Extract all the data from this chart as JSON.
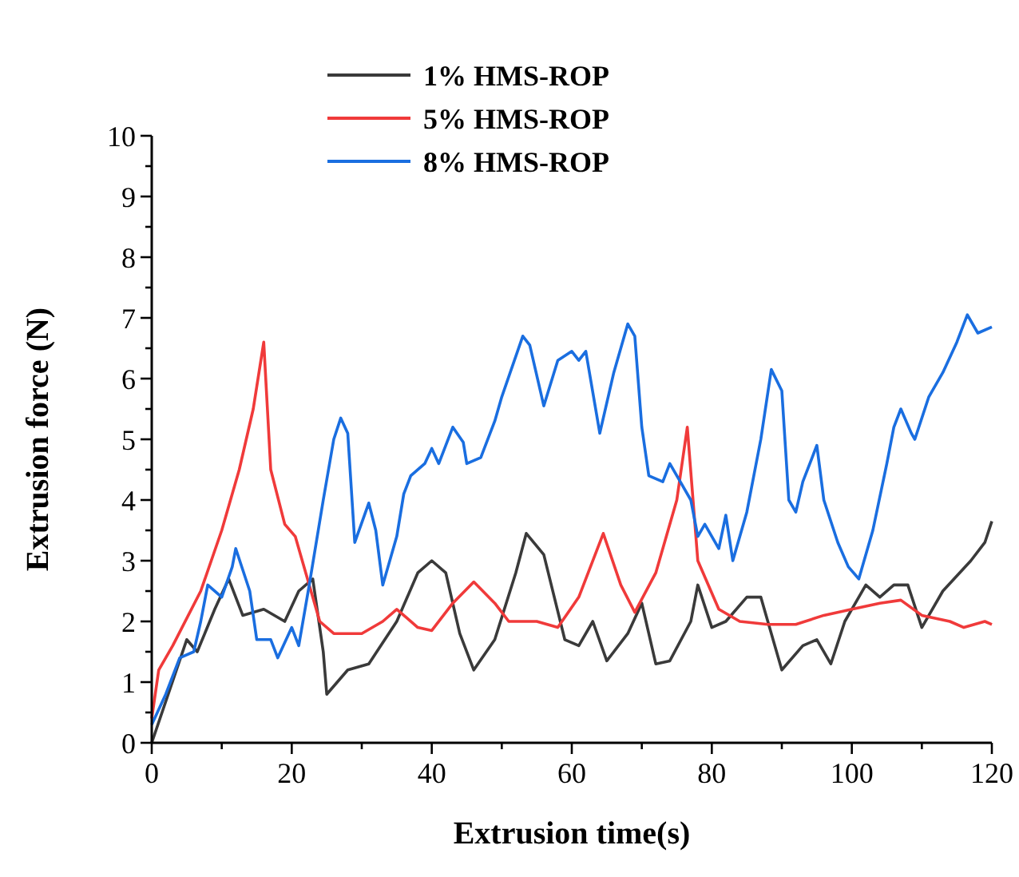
{
  "chart_data": {
    "type": "line",
    "xlabel": "Extrusion time(s)",
    "ylabel": "Extrusion force (N)",
    "xlim": [
      0,
      120
    ],
    "ylim": [
      0,
      10
    ],
    "xticks": [
      0,
      {
        "value": 10,
        "label": null
      },
      20,
      {
        "value": 30,
        "label": null
      },
      40,
      {
        "value": 50,
        "label": null
      },
      60,
      {
        "value": 70,
        "label": null
      },
      80,
      {
        "value": 90,
        "label": null
      },
      100,
      {
        "value": 110,
        "label": null
      },
      120
    ],
    "yticks": [
      0,
      {
        "value": 0.5,
        "label": null
      },
      1,
      {
        "value": 1.5,
        "label": null
      },
      2,
      {
        "value": 2.5,
        "label": null
      },
      3,
      {
        "value": 3.5,
        "label": null
      },
      4,
      {
        "value": 4.5,
        "label": null
      },
      5,
      {
        "value": 5.5,
        "label": null
      },
      6,
      {
        "value": 6.5,
        "label": null
      },
      7,
      {
        "value": 7.5,
        "label": null
      },
      8,
      {
        "value": 8.5,
        "label": null
      },
      9,
      {
        "value": 9.5,
        "label": null
      },
      10
    ],
    "legend": "top",
    "grid": false,
    "marker": "none",
    "line_style": "solid",
    "series": [
      {
        "name": "1% HMS-ROP",
        "color": "#3a3a3a",
        "x": [
          0,
          5,
          6.5,
          9,
          11,
          13,
          16,
          19,
          21,
          23,
          24.5,
          25,
          28,
          31,
          35,
          38,
          40,
          42,
          44,
          46,
          49,
          52,
          53.5,
          56,
          59,
          61,
          63,
          65,
          68,
          70,
          72,
          74,
          77,
          78,
          80,
          82,
          85,
          87,
          90,
          93,
          95,
          97,
          99,
          102,
          104,
          106,
          108,
          110,
          113,
          117,
          119,
          120
        ],
        "values": [
          0,
          1.7,
          1.5,
          2.2,
          2.7,
          2.1,
          2.2,
          2.0,
          2.5,
          2.7,
          1.5,
          0.8,
          1.2,
          1.3,
          2.0,
          2.8,
          3.0,
          2.8,
          1.8,
          1.2,
          1.7,
          2.8,
          3.45,
          3.1,
          1.7,
          1.6,
          2.0,
          1.35,
          1.8,
          2.3,
          1.3,
          1.35,
          2.0,
          2.6,
          1.9,
          2.0,
          2.4,
          2.4,
          1.2,
          1.6,
          1.7,
          1.3,
          2.0,
          2.6,
          2.4,
          2.6,
          2.6,
          1.9,
          2.5,
          3.0,
          3.3,
          3.65
        ]
      },
      {
        "name": "5% HMS-ROP",
        "color": "#f03a3a",
        "x": [
          0,
          1,
          3,
          7,
          10,
          12.5,
          14.5,
          16,
          17,
          19,
          20.5,
          22,
          24,
          26,
          30,
          33,
          35,
          38,
          40,
          43,
          46,
          49,
          51,
          55,
          58,
          61,
          64.5,
          67,
          69,
          72,
          75,
          76.5,
          78,
          81,
          84,
          88,
          92,
          96,
          100,
          104,
          107,
          110,
          114,
          116,
          119,
          120
        ],
        "values": [
          0.4,
          1.2,
          1.6,
          2.5,
          3.5,
          4.5,
          5.5,
          6.6,
          4.5,
          3.6,
          3.4,
          2.8,
          2.0,
          1.8,
          1.8,
          2.0,
          2.2,
          1.9,
          1.85,
          2.3,
          2.65,
          2.3,
          2.0,
          2.0,
          1.9,
          2.4,
          3.45,
          2.6,
          2.15,
          2.8,
          4.0,
          5.2,
          3.0,
          2.2,
          2.0,
          1.95,
          1.95,
          2.1,
          2.2,
          2.3,
          2.35,
          2.1,
          2.0,
          1.9,
          2.0,
          1.95
        ]
      },
      {
        "name": "8% HMS-ROP",
        "color": "#1a6ee0",
        "x": [
          0,
          2,
          4,
          6,
          7,
          8,
          10,
          11.5,
          12,
          14,
          15,
          17,
          18,
          20,
          21,
          22.5,
          24.5,
          26,
          27,
          28,
          29,
          31,
          32,
          33,
          35,
          36,
          37,
          39,
          40,
          41,
          43,
          44.5,
          45,
          47,
          49,
          50,
          53,
          54,
          56,
          58,
          60,
          61,
          62,
          64,
          66,
          68,
          69,
          70,
          71,
          73,
          74,
          75.5,
          77,
          78,
          79,
          81,
          82,
          83,
          85,
          87,
          88.5,
          90,
          91,
          92,
          93,
          95,
          96,
          98,
          99.5,
          101,
          103,
          105,
          106,
          107,
          108.5,
          109,
          111,
          113,
          115,
          116.5,
          118,
          120
        ],
        "values": [
          0.3,
          0.8,
          1.4,
          1.5,
          2.0,
          2.6,
          2.4,
          2.9,
          3.2,
          2.5,
          1.7,
          1.7,
          1.4,
          1.9,
          1.6,
          2.6,
          4.0,
          5.0,
          5.35,
          5.1,
          3.3,
          3.95,
          3.5,
          2.6,
          3.4,
          4.1,
          4.4,
          4.6,
          4.85,
          4.6,
          5.2,
          4.95,
          4.6,
          4.7,
          5.3,
          5.7,
          6.7,
          6.55,
          5.55,
          6.3,
          6.45,
          6.3,
          6.45,
          5.1,
          6.1,
          6.9,
          6.7,
          5.2,
          4.4,
          4.3,
          4.6,
          4.3,
          4.0,
          3.4,
          3.6,
          3.2,
          3.75,
          3.0,
          3.8,
          5.0,
          6.15,
          5.8,
          4.0,
          3.8,
          4.3,
          4.9,
          4.0,
          3.3,
          2.9,
          2.7,
          3.5,
          4.6,
          5.2,
          5.5,
          5.1,
          5.0,
          5.7,
          6.1,
          6.6,
          7.05,
          6.75,
          6.85
        ]
      }
    ]
  }
}
